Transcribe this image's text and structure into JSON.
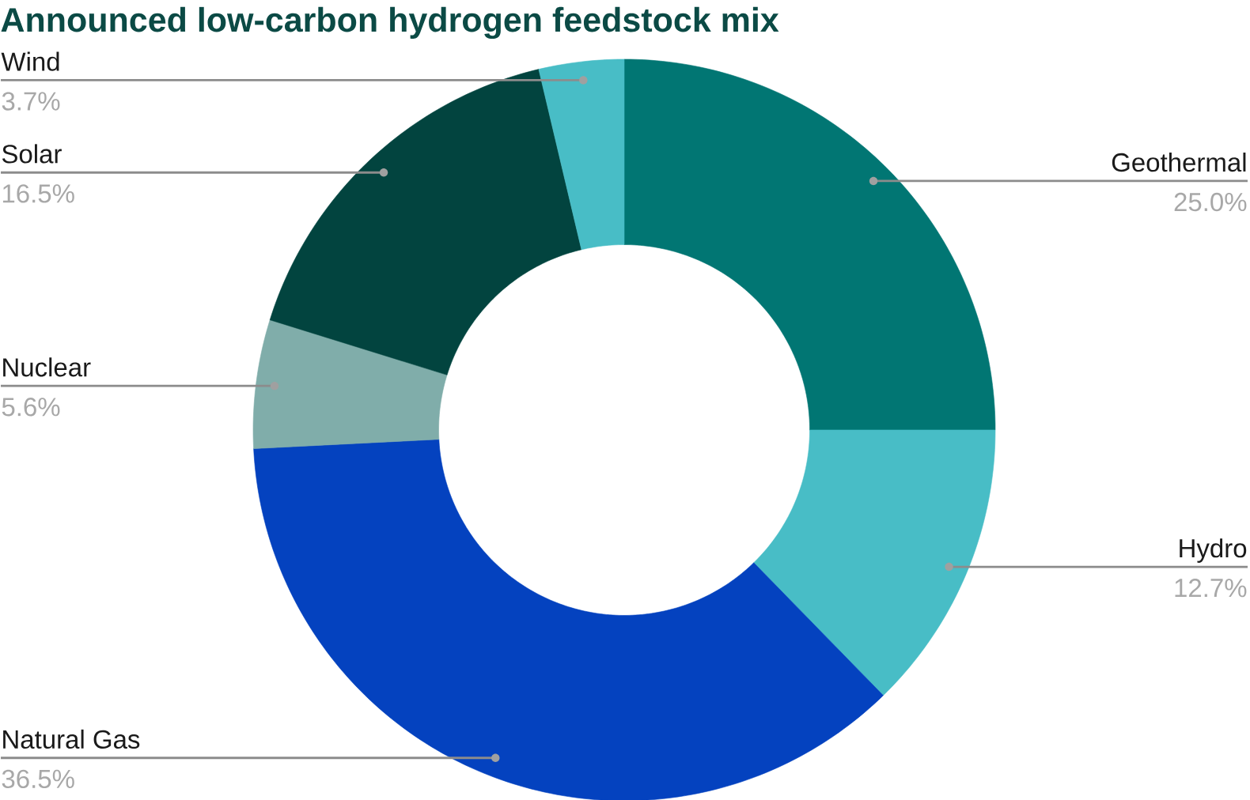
{
  "chart_data": {
    "type": "donut",
    "title": "Announced low-carbon hydrogen feedstock mix",
    "categories": [
      "Geothermal",
      "Hydro",
      "Natural Gas",
      "Nuclear",
      "Solar",
      "Wind"
    ],
    "values": [
      25.0,
      12.7,
      36.5,
      5.6,
      16.5,
      3.7
    ],
    "colors": [
      "#017673",
      "#48bdc6",
      "#0442bf",
      "#80adaa",
      "#02443f",
      "#48bdc6"
    ],
    "value_labels": [
      "25.0%",
      "12.7%",
      "36.5%",
      "5.6%",
      "16.5%",
      "3.7%"
    ]
  }
}
